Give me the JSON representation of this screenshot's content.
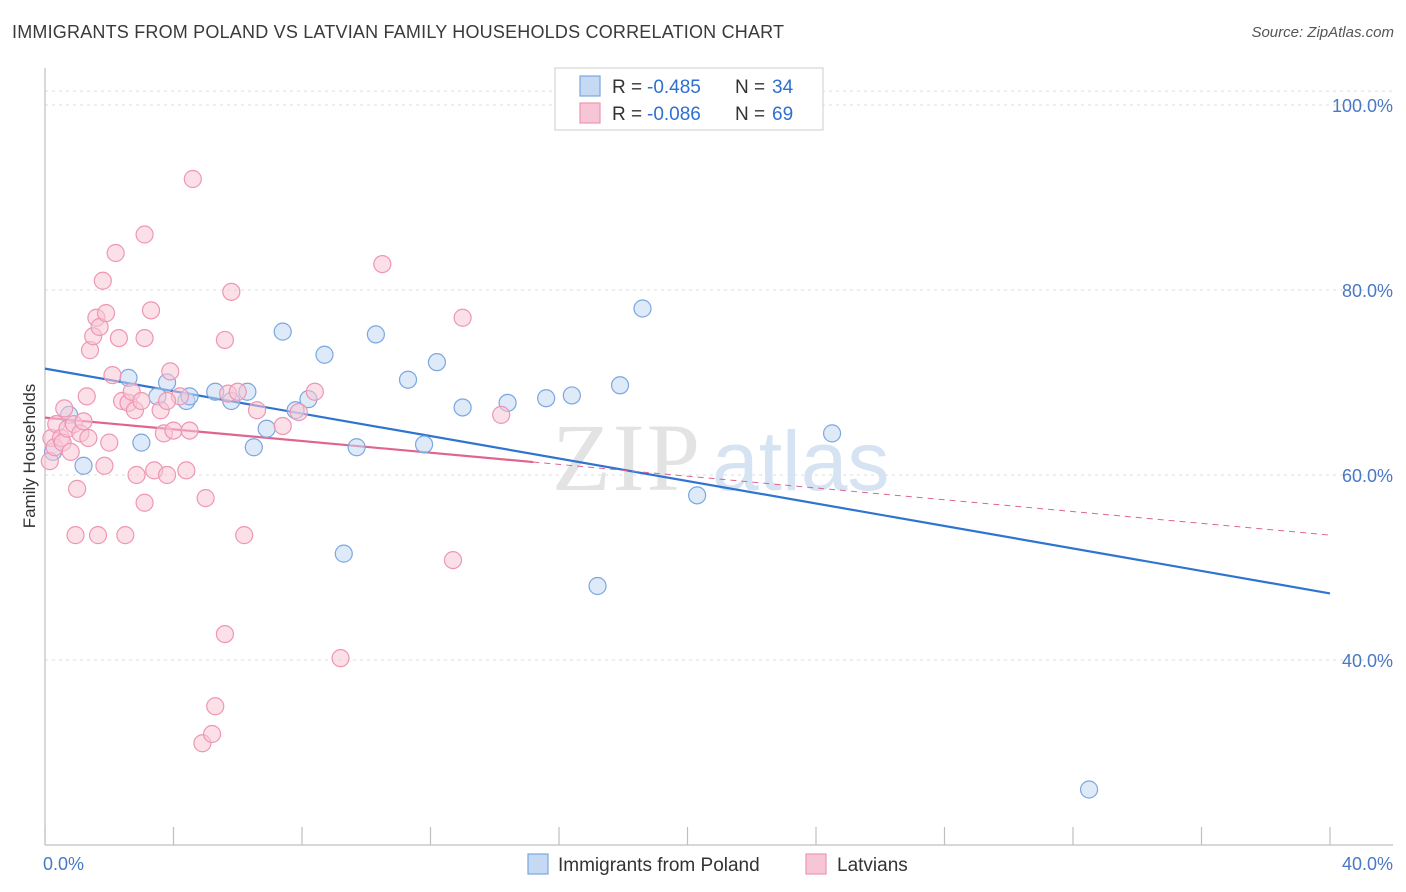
{
  "title": "IMMIGRANTS FROM POLAND VS LATVIAN FAMILY HOUSEHOLDS CORRELATION CHART",
  "source": "Source: ZipAtlas.com",
  "watermark": {
    "zip": "ZIP",
    "atlas": "atlas"
  },
  "chart_data": {
    "type": "scatter",
    "title": "IMMIGRANTS FROM POLAND VS LATVIAN FAMILY HOUSEHOLDS CORRELATION CHART",
    "xlabel": "",
    "ylabel": "Family Households",
    "xlim": [
      0,
      40
    ],
    "ylim": [
      20,
      104
    ],
    "x_ticks": [
      "0.0%",
      "40.0%"
    ],
    "y_ticks": [
      {
        "value": 100,
        "label": "100.0%"
      },
      {
        "value": 80,
        "label": "80.0%"
      },
      {
        "value": 60,
        "label": "60.0%"
      },
      {
        "value": 40,
        "label": "40.0%"
      }
    ],
    "legend": {
      "entries": [
        {
          "r_label": "R = ",
          "r_value": "-0.485",
          "n_label": "N = ",
          "n_value": "34"
        },
        {
          "r_label": "R = ",
          "r_value": "-0.086",
          "n_label": "N = ",
          "n_value": "69"
        }
      ]
    },
    "series": [
      {
        "name": "Immigrants from Poland",
        "color": "#7aa7e0",
        "fill": "#c5d9f3",
        "line_color": "#2f74d0",
        "trend": {
          "x": [
            0,
            40
          ],
          "y": [
            71.5,
            47.2
          ]
        },
        "points": [
          [
            0.25,
            62.5
          ],
          [
            0.75,
            66.5
          ],
          [
            1.2,
            61
          ],
          [
            2.6,
            70.5
          ],
          [
            3.0,
            63.5
          ],
          [
            3.8,
            70
          ],
          [
            3.5,
            68.5
          ],
          [
            4.4,
            68
          ],
          [
            4.5,
            68.5
          ],
          [
            5.8,
            68
          ],
          [
            5.3,
            69
          ],
          [
            6.3,
            69
          ],
          [
            6.5,
            63
          ],
          [
            6.9,
            65
          ],
          [
            7.4,
            75.5
          ],
          [
            7.8,
            67
          ],
          [
            8.2,
            68.2
          ],
          [
            8.7,
            73
          ],
          [
            9.3,
            51.5
          ],
          [
            9.7,
            63
          ],
          [
            10.3,
            75.2
          ],
          [
            11.3,
            70.3
          ],
          [
            11.8,
            63.3
          ],
          [
            12.2,
            72.2
          ],
          [
            13.0,
            67.3
          ],
          [
            14.4,
            67.8
          ],
          [
            15.6,
            68.3
          ],
          [
            16.4,
            68.6
          ],
          [
            17.2,
            48
          ],
          [
            17.9,
            69.7
          ],
          [
            18.6,
            78
          ],
          [
            20.3,
            57.8
          ],
          [
            24.5,
            64.5
          ],
          [
            32.5,
            26
          ]
        ]
      },
      {
        "name": "Latvians",
        "color": "#ee96b4",
        "fill": "#f7c6d6",
        "line_color": "#e0648f",
        "trend": {
          "x": [
            0,
            15.2
          ],
          "y": [
            66.2,
            61.4
          ]
        },
        "trend_dashed": {
          "x": [
            15.2,
            40
          ],
          "y": [
            61.4,
            53.5
          ]
        },
        "points": [
          [
            0.15,
            61.5
          ],
          [
            0.2,
            64
          ],
          [
            0.3,
            63
          ],
          [
            0.35,
            65.5
          ],
          [
            0.5,
            64
          ],
          [
            0.55,
            63.5
          ],
          [
            0.6,
            67.2
          ],
          [
            0.7,
            65
          ],
          [
            0.8,
            62.5
          ],
          [
            0.9,
            65.5
          ],
          [
            1.0,
            58.5
          ],
          [
            0.95,
            53.5
          ],
          [
            1.1,
            64.5
          ],
          [
            1.2,
            65.8
          ],
          [
            1.3,
            68.5
          ],
          [
            1.35,
            64
          ],
          [
            1.4,
            73.5
          ],
          [
            1.5,
            75
          ],
          [
            1.6,
            77
          ],
          [
            1.65,
            53.5
          ],
          [
            1.7,
            76
          ],
          [
            1.8,
            81
          ],
          [
            1.85,
            61
          ],
          [
            1.9,
            77.5
          ],
          [
            2.0,
            63.5
          ],
          [
            2.1,
            70.8
          ],
          [
            2.2,
            84
          ],
          [
            2.3,
            74.8
          ],
          [
            2.4,
            68
          ],
          [
            2.5,
            53.5
          ],
          [
            2.6,
            67.8
          ],
          [
            2.7,
            69
          ],
          [
            2.8,
            67
          ],
          [
            2.85,
            60
          ],
          [
            3.0,
            68
          ],
          [
            3.1,
            57
          ],
          [
            3.1,
            74.8
          ],
          [
            3.1,
            86
          ],
          [
            3.3,
            77.8
          ],
          [
            3.4,
            60.5
          ],
          [
            3.6,
            67
          ],
          [
            3.7,
            64.5
          ],
          [
            3.8,
            60
          ],
          [
            3.9,
            71.2
          ],
          [
            4.0,
            64.8
          ],
          [
            4.2,
            68.5
          ],
          [
            4.4,
            60.5
          ],
          [
            4.5,
            64.8
          ],
          [
            4.6,
            92
          ],
          [
            4.9,
            31
          ],
          [
            5.0,
            57.5
          ],
          [
            5.2,
            32
          ],
          [
            5.3,
            35
          ],
          [
            5.6,
            42.8
          ],
          [
            5.6,
            74.6
          ],
          [
            5.7,
            68.8
          ],
          [
            5.8,
            79.8
          ],
          [
            6.0,
            69
          ],
          [
            6.2,
            53.5
          ],
          [
            6.6,
            67
          ],
          [
            7.4,
            65.3
          ],
          [
            7.9,
            66.8
          ],
          [
            8.4,
            69
          ],
          [
            9.2,
            40.2
          ],
          [
            10.5,
            82.8
          ],
          [
            12.7,
            50.8
          ],
          [
            13.0,
            77
          ],
          [
            14.2,
            66.5
          ],
          [
            3.8,
            68
          ]
        ]
      }
    ],
    "legend_bottom": [
      "Immigrants from Poland",
      "Latvians"
    ]
  }
}
